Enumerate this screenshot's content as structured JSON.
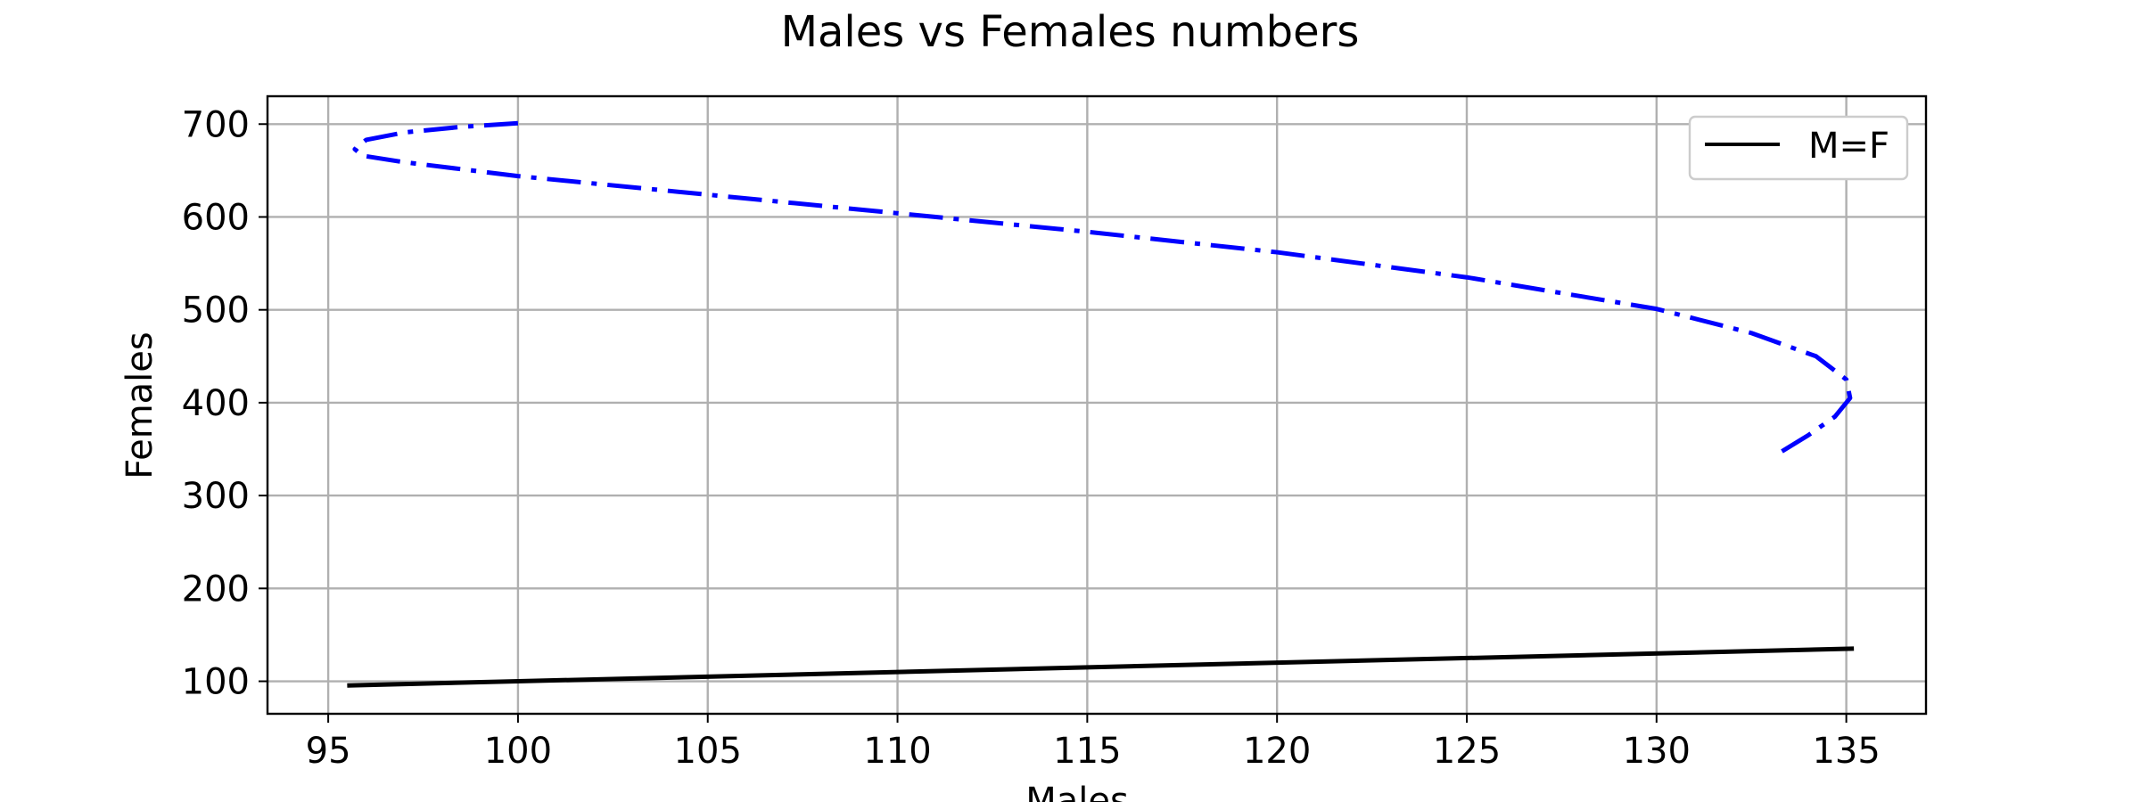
{
  "chart_data": {
    "type": "line",
    "title": "Males vs Females numbers",
    "xlabel": "Males",
    "ylabel": "Females",
    "xlim": [
      93.4,
      137.1
    ],
    "ylim": [
      65,
      730
    ],
    "xticks": [
      95,
      100,
      105,
      110,
      115,
      120,
      125,
      130,
      135
    ],
    "yticks": [
      100,
      200,
      300,
      400,
      500,
      600,
      700
    ],
    "grid": true,
    "legend_position": "top-right",
    "series": [
      {
        "name": "",
        "color": "#0000ff",
        "linestyle": "dashdot",
        "x": [
          100.0,
          98.5,
          97.0,
          96.0,
          95.7,
          95.9,
          97.0,
          100.0,
          105.0,
          110.0,
          115.0,
          120.0,
          125.0,
          130.0,
          132.5,
          134.2,
          135.0,
          135.1,
          134.7,
          134.0,
          133.2
        ],
        "y": [
          701,
          697,
          691,
          683,
          673,
          666,
          659,
          644,
          624,
          604,
          584,
          562,
          535,
          501,
          475,
          450,
          425,
          405,
          385,
          365,
          345
        ]
      },
      {
        "name": "M=F",
        "color": "#000000",
        "linestyle": "solid",
        "x": [
          95.5,
          135.2
        ],
        "y": [
          95.5,
          135.2
        ]
      }
    ]
  }
}
